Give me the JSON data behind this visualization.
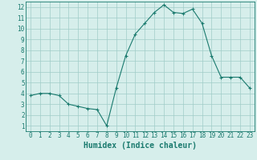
{
  "x": [
    0,
    1,
    2,
    3,
    4,
    5,
    6,
    7,
    8,
    9,
    10,
    11,
    12,
    13,
    14,
    15,
    16,
    17,
    18,
    19,
    20,
    21,
    22,
    23
  ],
  "y": [
    3.8,
    4.0,
    4.0,
    3.8,
    3.0,
    2.8,
    2.6,
    2.5,
    1.0,
    4.5,
    7.5,
    9.5,
    10.5,
    11.5,
    12.2,
    11.5,
    11.4,
    11.8,
    10.5,
    7.5,
    5.5,
    5.5,
    5.5,
    4.5
  ],
  "line_color": "#1a7a6e",
  "marker": "+",
  "bg_color": "#d6eeeb",
  "grid_color": "#a0ccc8",
  "xlabel": "Humidex (Indice chaleur)",
  "xlim": [
    -0.5,
    23.5
  ],
  "ylim": [
    0.5,
    12.5
  ],
  "xticks": [
    0,
    1,
    2,
    3,
    4,
    5,
    6,
    7,
    8,
    9,
    10,
    11,
    12,
    13,
    14,
    15,
    16,
    17,
    18,
    19,
    20,
    21,
    22,
    23
  ],
  "yticks": [
    1,
    2,
    3,
    4,
    5,
    6,
    7,
    8,
    9,
    10,
    11,
    12
  ],
  "tick_fontsize": 5.5,
  "xlabel_fontsize": 7,
  "label_color": "#1a7a6e"
}
